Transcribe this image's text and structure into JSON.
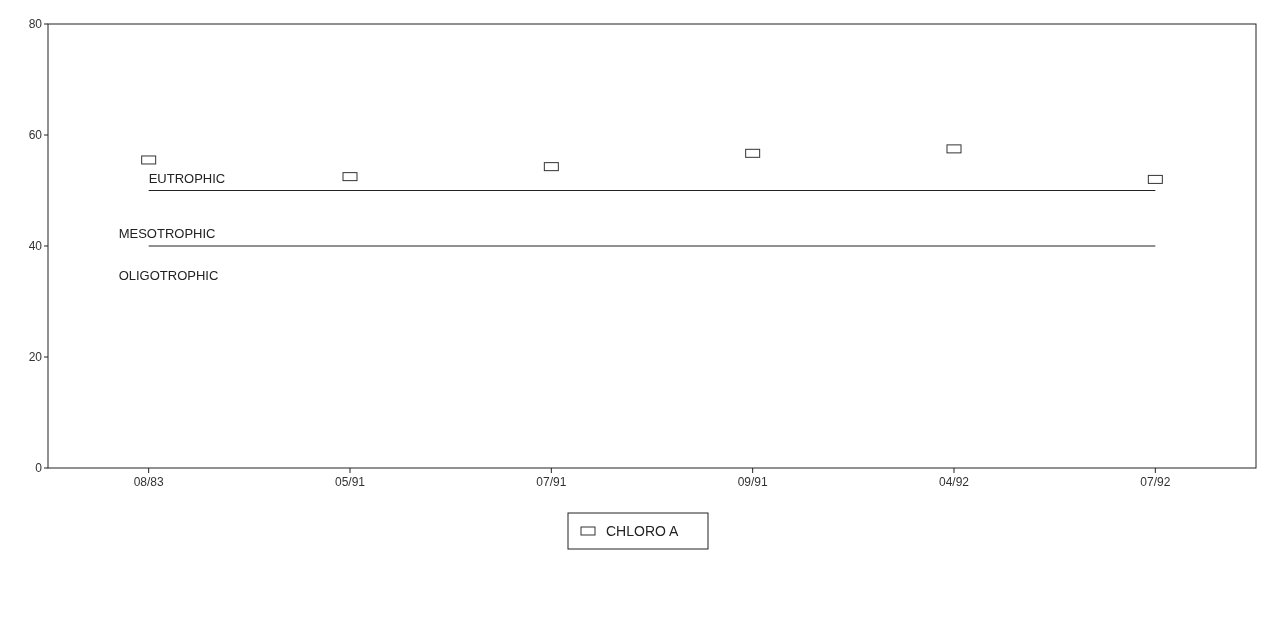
{
  "chart_data": {
    "type": "scatter",
    "categories": [
      "08/83",
      "05/91",
      "07/91",
      "09/91",
      "04/92",
      "07/92"
    ],
    "series": [
      {
        "name": "CHLORO A",
        "color": "#333333",
        "values": [
          55.5,
          52.5,
          54.3,
          56.7,
          57.5,
          52
        ]
      }
    ],
    "ylim": [
      0,
      80
    ],
    "yticks": [
      0,
      20,
      40,
      60,
      80
    ],
    "marker": "square",
    "legend": "bottom",
    "grid": false,
    "ref_lines": [
      {
        "axis": "y",
        "value": 50,
        "label": "EUTROPHIC",
        "color": "#222222"
      },
      {
        "axis": "y",
        "value": 40,
        "label": "MESOTROPHIC",
        "color": "#222222"
      }
    ],
    "annotations": [
      "OLIGOTROPHIC"
    ]
  }
}
